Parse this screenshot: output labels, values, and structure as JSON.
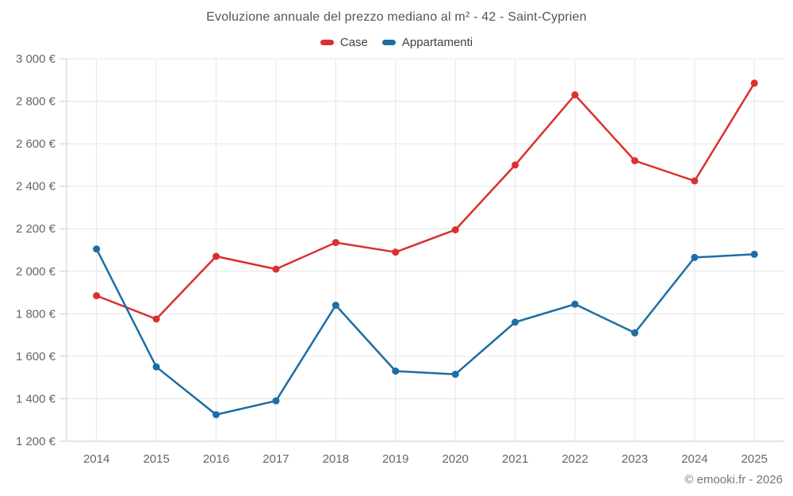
{
  "chart_data": {
    "type": "line",
    "title": "Evoluzione annuale del prezzo mediano al m² - 42 - Saint-Cyprien",
    "categories": [
      "2014",
      "2015",
      "2016",
      "2017",
      "2018",
      "2019",
      "2020",
      "2021",
      "2022",
      "2023",
      "2024",
      "2025"
    ],
    "series": [
      {
        "name": "Case",
        "color": "#d93030",
        "values": [
          1885,
          1775,
          2070,
          2010,
          2135,
          2090,
          2195,
          2500,
          2830,
          2520,
          2425,
          2885
        ]
      },
      {
        "name": "Appartamenti",
        "color": "#1c6ea4",
        "values": [
          2105,
          1550,
          1325,
          1390,
          1840,
          1530,
          1515,
          1760,
          1845,
          1710,
          2065,
          2080
        ]
      }
    ],
    "ylim": [
      1200,
      3000
    ],
    "ytick_step": 200,
    "ytick_suffix": " €",
    "thousands_separator": " ",
    "grid": true,
    "legend_position": "top",
    "xlabel": "",
    "ylabel": ""
  },
  "footer": {
    "credit": "© emooki.fr - 2026"
  },
  "colors": {
    "grid": "#e6e6e6",
    "axis": "#cccccc",
    "background": "#ffffff"
  }
}
